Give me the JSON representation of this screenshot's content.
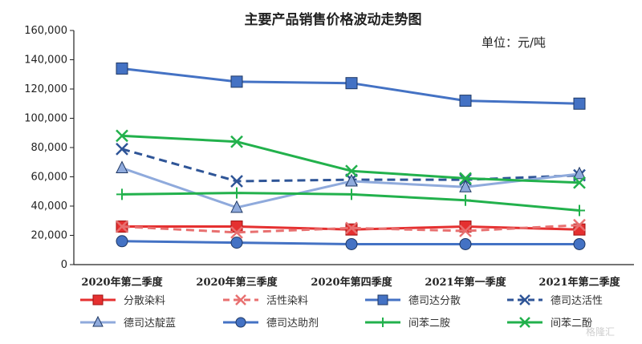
{
  "chart_data": {
    "type": "line",
    "title": "主要产品销售价格波动走势图",
    "unit_note": "单位：元/吨",
    "categories": [
      "2020年第二季度",
      "2020年第三季度",
      "2020年第四季度",
      "2021年第一季度",
      "2021年第二季度"
    ],
    "yticks": [
      "0",
      "20,000",
      "40,000",
      "60,000",
      "80,000",
      "100,000",
      "120,000",
      "140,000",
      "160,000"
    ],
    "ylim": [
      0,
      160000
    ],
    "legend_position": "bottom",
    "series": [
      {
        "name": "分散染料",
        "color": "#e53030",
        "marker": "square",
        "dash": false,
        "values": [
          26000,
          26000,
          24000,
          26000,
          24000
        ]
      },
      {
        "name": "活性染料",
        "color": "#e87070",
        "marker": "x",
        "dash": true,
        "values": [
          26000,
          22000,
          25000,
          23000,
          27000
        ]
      },
      {
        "name": "德司达分散",
        "color": "#4472c4",
        "marker": "square",
        "dash": false,
        "values": [
          134000,
          125000,
          124000,
          112000,
          110000
        ]
      },
      {
        "name": "德司达活性",
        "color": "#2f5597",
        "marker": "x",
        "dash": true,
        "values": [
          79000,
          57000,
          58000,
          58000,
          61000
        ]
      },
      {
        "name": "德司达靛蓝",
        "color": "#8faadc",
        "marker": "triangle",
        "dash": false,
        "values": [
          66000,
          39000,
          57000,
          53000,
          62000
        ]
      },
      {
        "name": "德司达助剂",
        "color": "#4472c4",
        "marker": "circle",
        "dash": false,
        "values": [
          16000,
          15000,
          14000,
          14000,
          14000
        ]
      },
      {
        "name": "间苯二胺",
        "color": "#22b14c",
        "marker": "plus",
        "dash": false,
        "values": [
          48000,
          49000,
          48000,
          44000,
          37000
        ]
      },
      {
        "name": "间苯二酚",
        "color": "#22b14c",
        "marker": "x",
        "dash": false,
        "values": [
          88000,
          84000,
          64000,
          59000,
          56000
        ]
      }
    ]
  },
  "watermark": "格隆汇"
}
